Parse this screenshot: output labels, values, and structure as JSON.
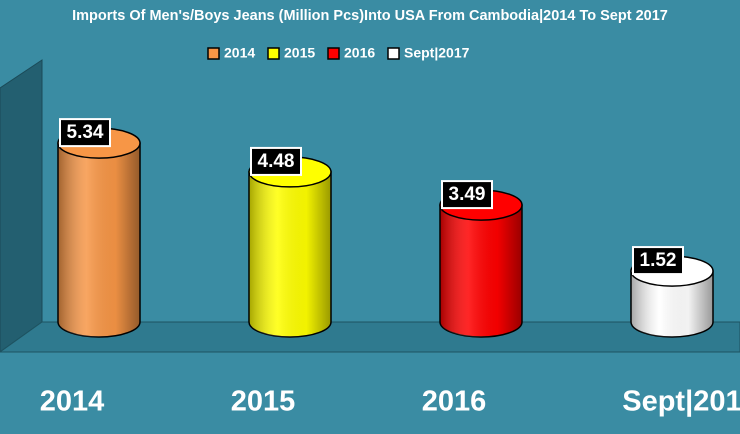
{
  "chart_data": {
    "type": "bar",
    "title": "Imports Of Men's/Boys Jeans (Million Pcs)Into USA From Cambodia|2014 To Sept 2017",
    "categories": [
      "2014",
      "2015",
      "2016",
      "Sept|2017"
    ],
    "values": [
      5.34,
      4.48,
      3.49,
      1.52
    ],
    "colors": [
      "#f79646",
      "#ffff00",
      "#ff0000",
      "#ffffff"
    ]
  }
}
